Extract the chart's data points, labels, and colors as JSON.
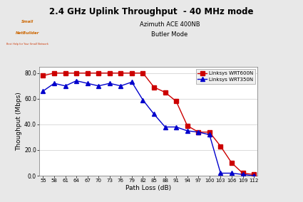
{
  "title": "2.4 GHz Uplink Throughput  - 40 MHz mode",
  "subtitle1": "Azimuth ACE 400NB",
  "subtitle2": "Butler Mode",
  "xlabel": "Path Loss (dB)",
  "ylabel": "Thoughput (Mbps)",
  "x_ticks": [
    55,
    58,
    61,
    64,
    67,
    70,
    73,
    76,
    79,
    82,
    85,
    88,
    91,
    94,
    97,
    100,
    103,
    106,
    109,
    112
  ],
  "wrt600n": {
    "x": [
      55,
      58,
      61,
      64,
      67,
      70,
      73,
      76,
      79,
      82,
      85,
      88,
      91,
      94,
      97,
      100,
      103,
      106,
      109,
      112
    ],
    "y": [
      78,
      80,
      80,
      80,
      80,
      80,
      80,
      80,
      80,
      80,
      69,
      65,
      58,
      39,
      34,
      34,
      23,
      10,
      2,
      1
    ]
  },
  "wrt350n": {
    "x": [
      55,
      58,
      61,
      64,
      67,
      70,
      73,
      76,
      79,
      82,
      85,
      88,
      91,
      94,
      97,
      100,
      103,
      106,
      109,
      112
    ],
    "y": [
      66,
      72,
      70,
      74,
      72,
      70,
      72,
      70,
      73,
      59,
      48,
      38,
      38,
      35,
      34,
      32,
      2,
      2,
      1,
      0
    ]
  },
  "wrt600n_color": "#cc0000",
  "wrt350n_color": "#0000cc",
  "bg_color": "#e8e8e8",
  "plot_bg_color": "#ffffff",
  "legend_labels": [
    "Linksys WRT600N",
    "Linksys WRT350N"
  ],
  "ylim": [
    0,
    85
  ],
  "xlim": [
    54,
    113
  ],
  "yticks": [
    0,
    20,
    40,
    60,
    80
  ],
  "ytick_labels": [
    "0.0",
    "20.0",
    "40.0",
    "60.0",
    "80.0"
  ]
}
